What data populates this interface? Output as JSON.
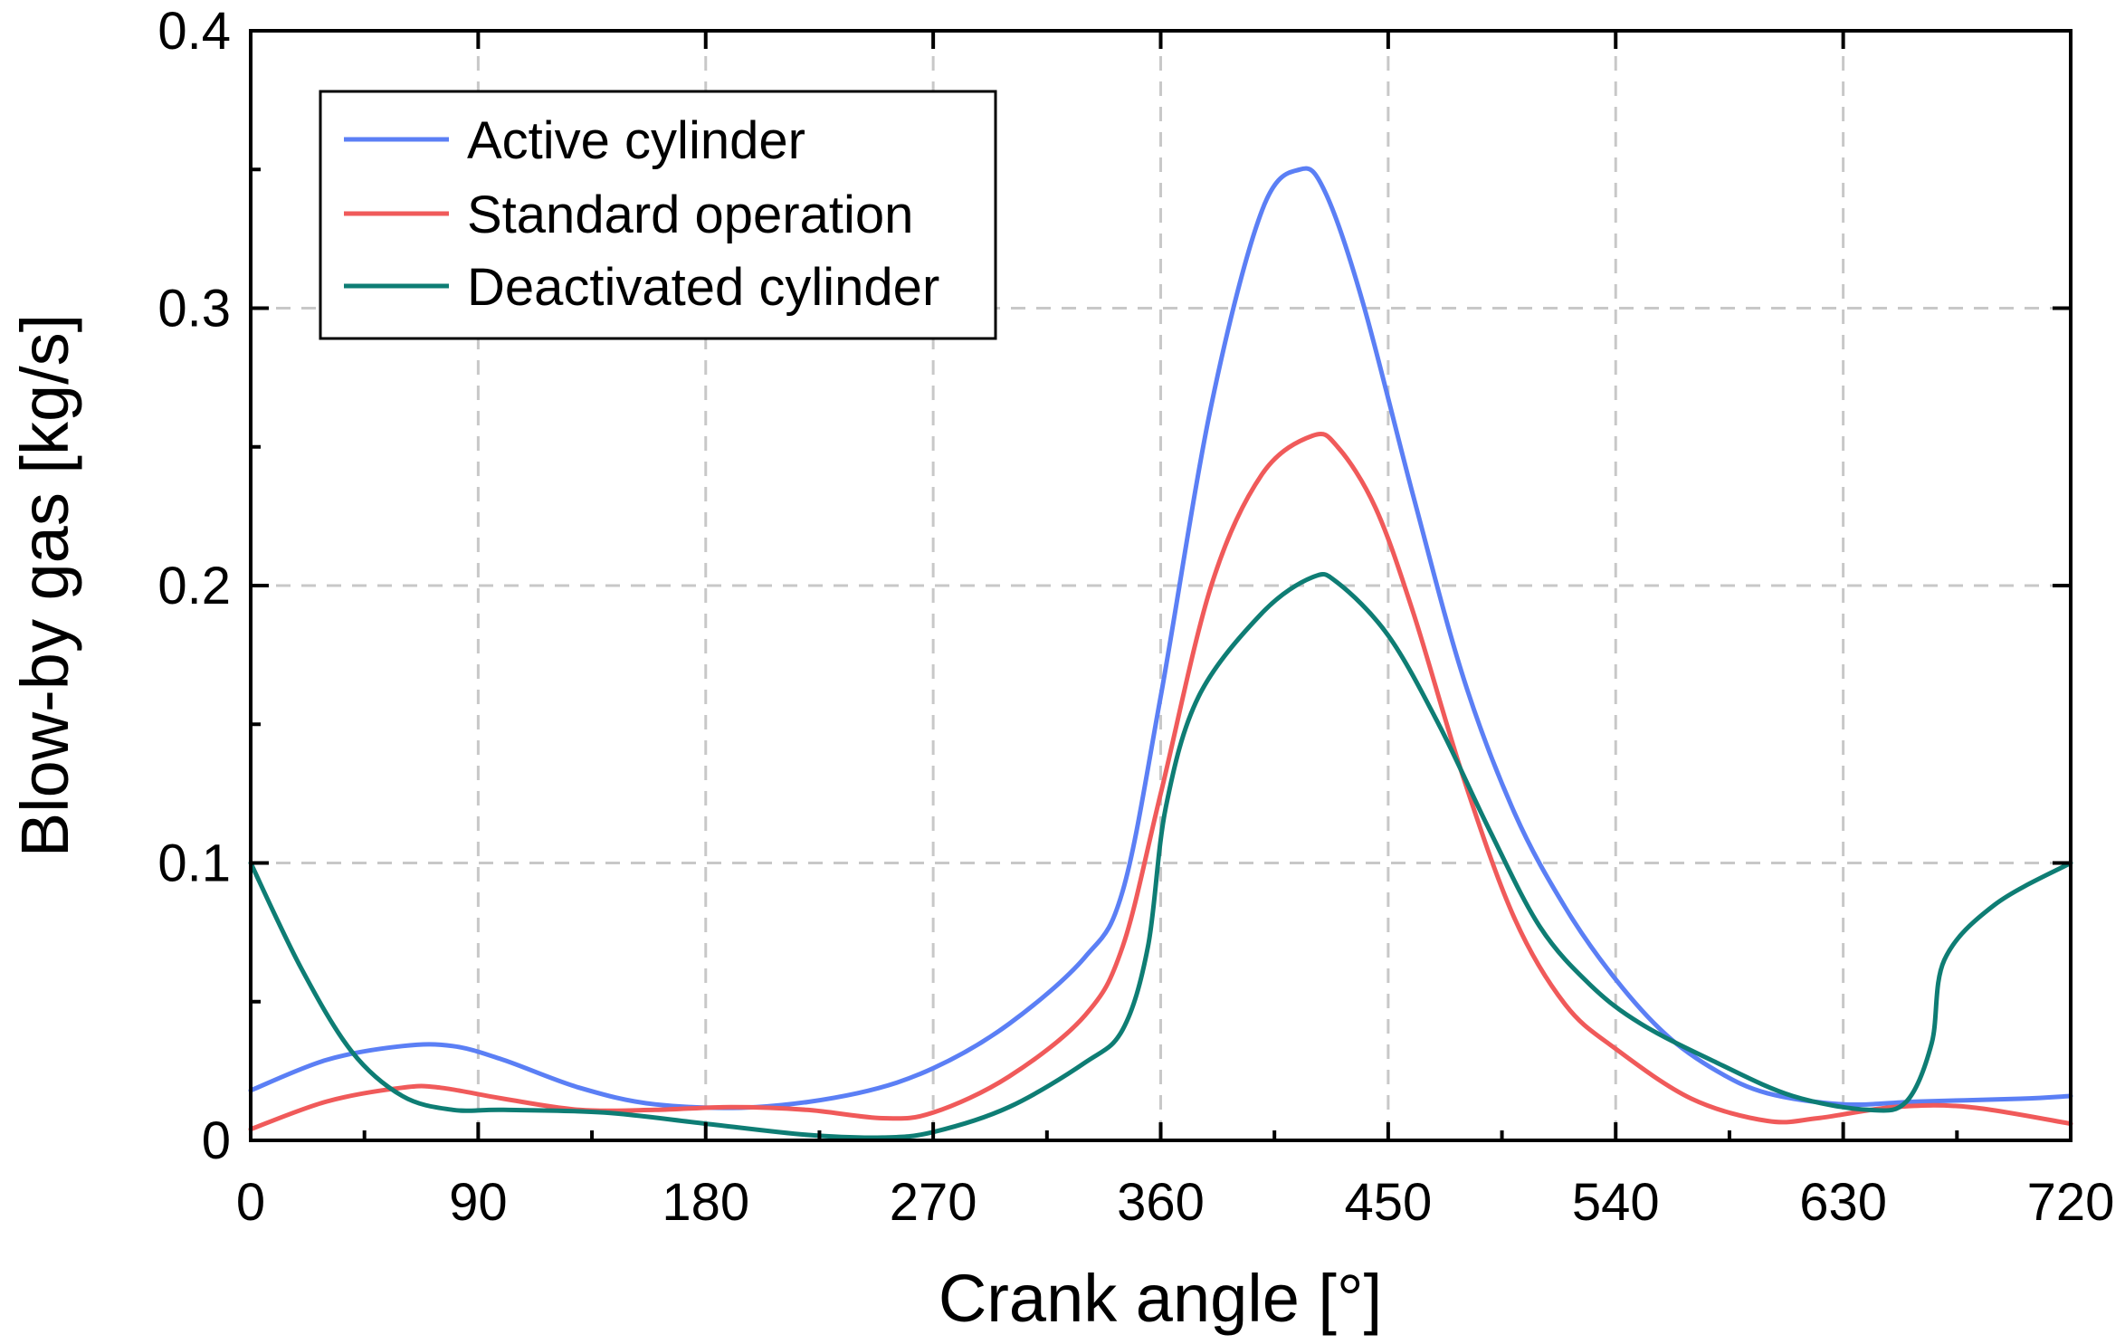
{
  "chart_data": {
    "type": "line",
    "title": "",
    "xlabel": "Crank angle [°]",
    "ylabel": "Blow-by gas [kg/s]",
    "xlim": [
      0,
      720
    ],
    "ylim": [
      0,
      0.4
    ],
    "xticks": [
      0,
      90,
      180,
      270,
      360,
      450,
      540,
      630,
      720
    ],
    "xtick_labels": [
      "0",
      "90",
      "180",
      "270",
      "360",
      "450",
      "540",
      "630",
      "720"
    ],
    "yticks": [
      0,
      0.1,
      0.2,
      0.3,
      0.4
    ],
    "ytick_labels": [
      "0",
      "0.1",
      "0.2",
      "0.3",
      "0.4"
    ],
    "grid": true,
    "legend_position": "top-left",
    "series": [
      {
        "name": "Active cylinder",
        "color": "#5b7ff5",
        "x": [
          0,
          30,
          60,
          80,
          100,
          130,
          160,
          200,
          240,
          270,
          300,
          330,
          345,
          360,
          380,
          400,
          415,
          425,
          440,
          460,
          480,
          500,
          520,
          540,
          560,
          580,
          600,
          630,
          660,
          700,
          720
        ],
        "y": [
          0.018,
          0.029,
          0.034,
          0.034,
          0.029,
          0.019,
          0.013,
          0.012,
          0.017,
          0.026,
          0.042,
          0.066,
          0.09,
          0.16,
          0.265,
          0.335,
          0.35,
          0.342,
          0.302,
          0.232,
          0.166,
          0.118,
          0.084,
          0.058,
          0.038,
          0.025,
          0.017,
          0.013,
          0.014,
          0.015,
          0.016
        ]
      },
      {
        "name": "Standard operation",
        "color": "#f05a5a",
        "x": [
          0,
          30,
          60,
          75,
          100,
          130,
          160,
          190,
          220,
          250,
          270,
          300,
          330,
          345,
          360,
          380,
          400,
          420,
          430,
          445,
          460,
          480,
          500,
          520,
          540,
          570,
          600,
          620,
          650,
          680,
          720
        ],
        "y": [
          0.004,
          0.014,
          0.019,
          0.019,
          0.015,
          0.011,
          0.011,
          0.012,
          0.011,
          0.008,
          0.01,
          0.023,
          0.045,
          0.07,
          0.125,
          0.2,
          0.24,
          0.254,
          0.25,
          0.228,
          0.19,
          0.13,
          0.08,
          0.049,
          0.033,
          0.015,
          0.007,
          0.008,
          0.012,
          0.012,
          0.006
        ]
      },
      {
        "name": "Deactivated cylinder",
        "color": "#0e7d74",
        "x": [
          0,
          20,
          40,
          60,
          80,
          100,
          140,
          180,
          220,
          250,
          270,
          300,
          330,
          345,
          355,
          362,
          375,
          400,
          420,
          430,
          450,
          470,
          490,
          510,
          530,
          550,
          580,
          610,
          640,
          655,
          665,
          670,
          690,
          720
        ],
        "y": [
          0.1,
          0.062,
          0.032,
          0.016,
          0.011,
          0.011,
          0.01,
          0.006,
          0.002,
          0.001,
          0.003,
          0.012,
          0.028,
          0.04,
          0.07,
          0.12,
          0.16,
          0.19,
          0.203,
          0.201,
          0.182,
          0.15,
          0.112,
          0.077,
          0.056,
          0.042,
          0.028,
          0.016,
          0.011,
          0.014,
          0.035,
          0.065,
          0.085,
          0.1
        ]
      }
    ]
  }
}
